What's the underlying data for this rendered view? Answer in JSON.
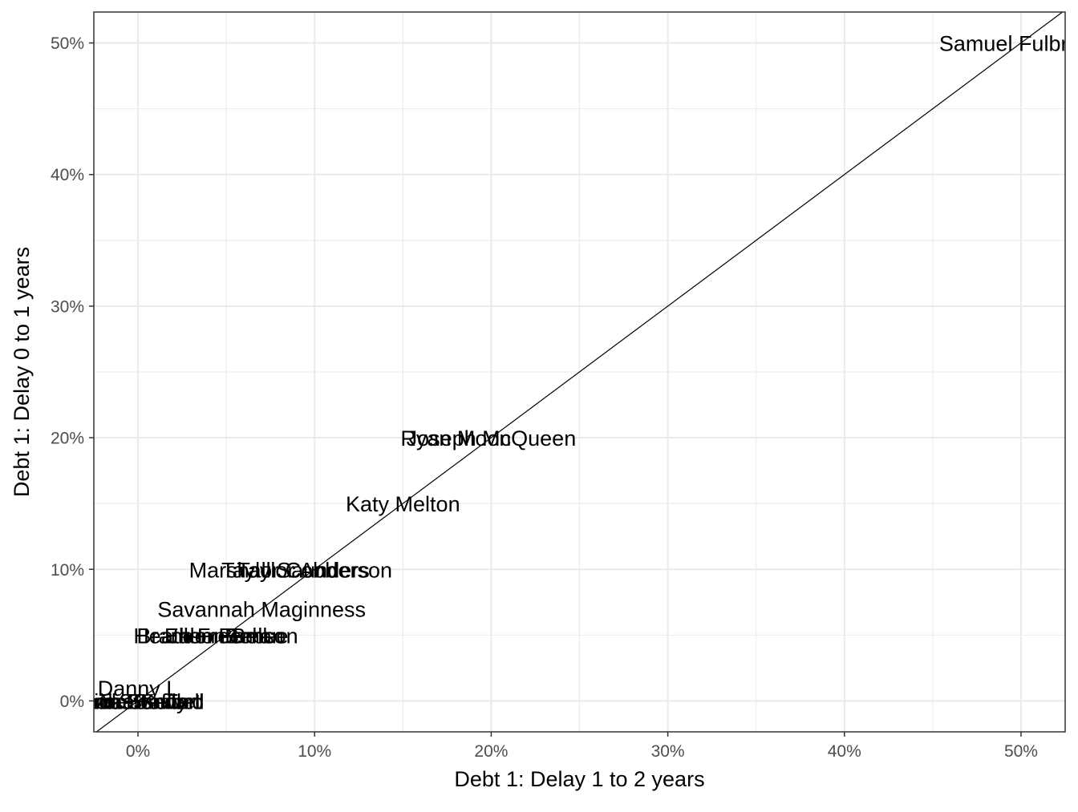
{
  "chart_data": {
    "type": "scatter",
    "title": "",
    "xlabel": "Debt 1: Delay 1 to 2 years",
    "ylabel": "Debt 1: Delay 0 to 1 years",
    "xlim": [
      -0.025,
      0.525
    ],
    "ylim": [
      -0.0235,
      0.5235
    ],
    "x_ticks": [
      0,
      0.1,
      0.2,
      0.3,
      0.4,
      0.5
    ],
    "x_tick_labels": [
      "0%",
      "10%",
      "20%",
      "30%",
      "40%",
      "50%"
    ],
    "y_ticks": [
      0,
      0.1,
      0.2,
      0.3,
      0.4,
      0.5
    ],
    "y_tick_labels": [
      "0%",
      "10%",
      "20%",
      "30%",
      "40%",
      "50%"
    ],
    "grid": true,
    "reference_line": "y = x",
    "points": [
      {
        "label": "Samuel Fulbright",
        "x": 0.5,
        "y": 0.5
      },
      {
        "label": "Ryan Moon",
        "x": 0.18,
        "y": 0.2
      },
      {
        "label": "Joseph McQueen",
        "x": 0.2,
        "y": 0.2
      },
      {
        "label": "Katy Melton",
        "x": 0.15,
        "y": 0.15
      },
      {
        "label": "Marshall Saunders",
        "x": 0.08,
        "y": 0.1
      },
      {
        "label": "Taylor Cobb",
        "x": 0.08,
        "y": 0.1
      },
      {
        "label": "Taylor Anderson",
        "x": 0.1,
        "y": 0.1
      },
      {
        "label": "Savannah Maginness",
        "x": 0.07,
        "y": 0.07
      },
      {
        "label": "Brandon Benson",
        "x": 0.045,
        "y": 0.05
      },
      {
        "label": "Heath Freeman",
        "x": 0.04,
        "y": 0.05
      },
      {
        "label": "Ellen Barbee",
        "x": 0.05,
        "y": 0.05
      },
      {
        "label": "Jason Bell",
        "x": 0.045,
        "y": 0.05
      },
      {
        "label": "Danny L",
        "x": 0.0,
        "y": 0.01
      },
      {
        "label": "Mike Kelly",
        "x": 0.0,
        "y": 0.0
      },
      {
        "label": "Lisa Smith",
        "x": 0.0,
        "y": 0.0
      },
      {
        "label": "Alice Stewart",
        "x": 0.0,
        "y": 0.0
      },
      {
        "label": "Emma Sewell",
        "x": 0.0,
        "y": 0.0
      },
      {
        "label": "Rob Bonner",
        "x": 0.0,
        "y": 0.0
      },
      {
        "label": "Tom Swafford",
        "x": 0.0,
        "y": 0.0
      }
    ]
  }
}
